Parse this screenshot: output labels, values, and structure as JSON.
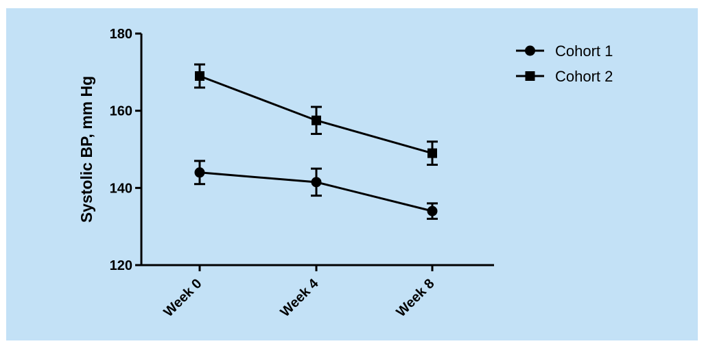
{
  "colors": {
    "background": "#c3e1f6",
    "ink": "#000000"
  },
  "chart_data": {
    "type": "line",
    "title": "",
    "xlabel": "",
    "ylabel": "Systolic BP, mm Hg",
    "categories": [
      "Week 0",
      "Week 4",
      "Week 8"
    ],
    "ylim": [
      120,
      180
    ],
    "yticks": [
      120,
      140,
      160,
      180
    ],
    "grid": false,
    "legend_position": "top-right",
    "series": [
      {
        "name": "Cohort 1",
        "marker": "circle",
        "values": [
          144,
          141.5,
          134
        ],
        "error": [
          3,
          3.5,
          2
        ]
      },
      {
        "name": "Cohort 2",
        "marker": "square",
        "values": [
          169,
          157.5,
          149
        ],
        "error": [
          3,
          3.5,
          3
        ]
      }
    ]
  }
}
